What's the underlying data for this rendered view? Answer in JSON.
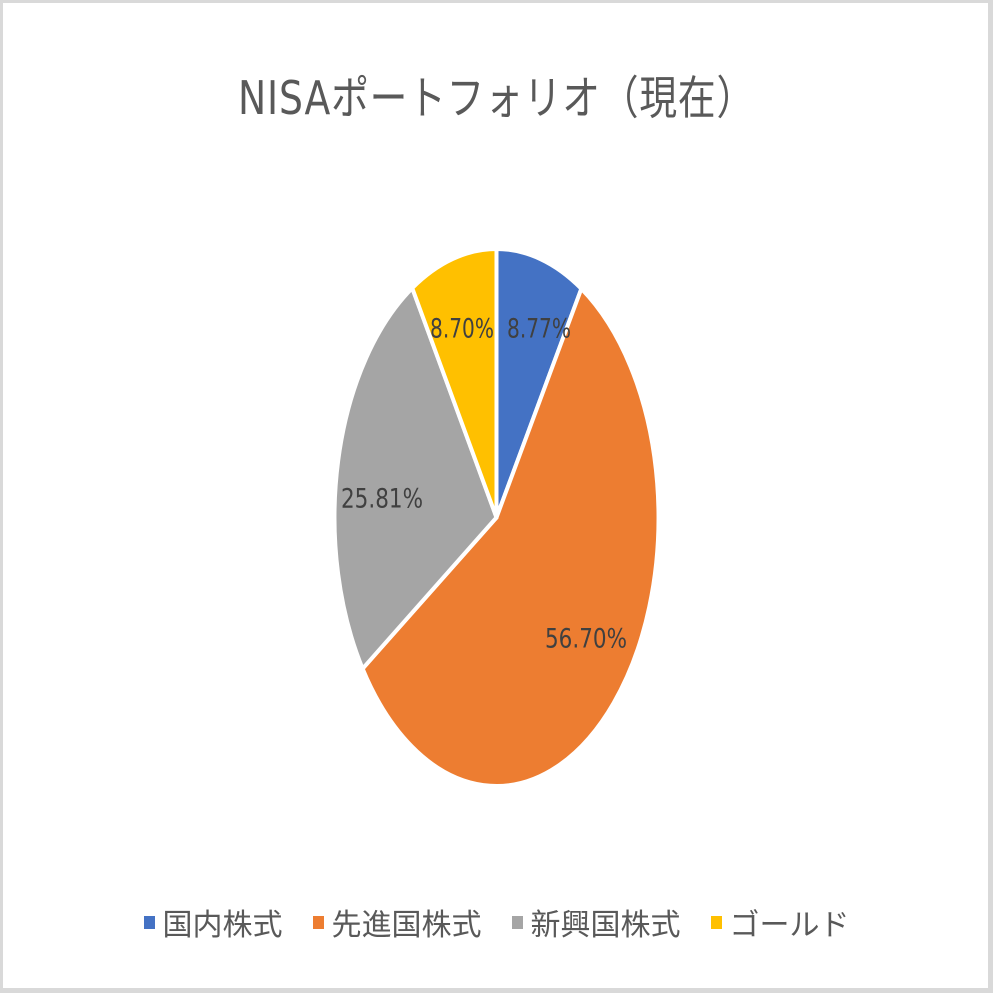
{
  "chart_data": {
    "type": "pie",
    "title": "NISAポートフォリオ（現在）",
    "categories": [
      "国内株式",
      "先進国株式",
      "新興国株式",
      "ゴールド"
    ],
    "values": [
      8.77,
      56.7,
      25.81,
      8.7
    ],
    "value_labels": [
      "8.77%",
      "56.70%",
      "25.81%",
      "8.70%"
    ],
    "colors": [
      "#4472C4",
      "#ED7D31",
      "#A5A5A5",
      "#FFC000"
    ],
    "legend_position": "bottom",
    "start_angle": "12 o'clock, clockwise"
  },
  "title": "NISAポートフォリオ（現在）",
  "legend": [
    {
      "label": "国内株式",
      "color": "#4472C4"
    },
    {
      "label": "先進国株式",
      "color": "#ED7D31"
    },
    {
      "label": "新興国株式",
      "color": "#A5A5A5"
    },
    {
      "label": "ゴールド",
      "color": "#FFC000"
    }
  ]
}
